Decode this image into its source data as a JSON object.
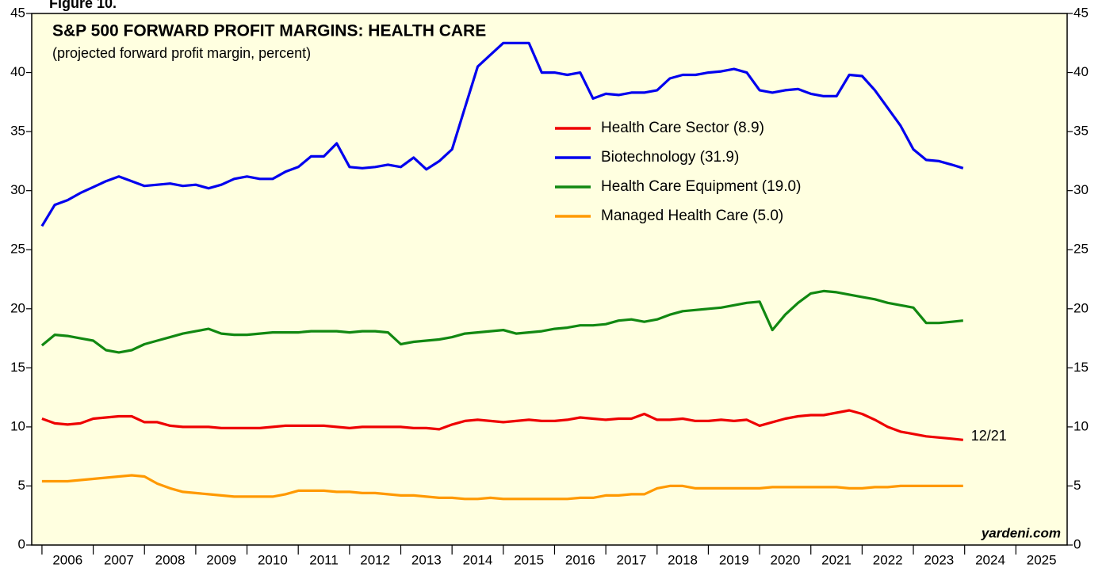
{
  "chart_data": {
    "type": "line",
    "figure_label": "Figure 10.",
    "title": "S&P 500 FORWARD PROFIT MARGINS: HEALTH CARE",
    "subtitle": "(projected forward profit margin, percent)",
    "source": "yardeni.com",
    "end_label": "12/21",
    "x": [
      2006,
      2006.25,
      2006.5,
      2006.75,
      2007,
      2007.25,
      2007.5,
      2007.75,
      2008,
      2008.25,
      2008.5,
      2008.75,
      2009,
      2009.25,
      2009.5,
      2009.75,
      2010,
      2010.25,
      2010.5,
      2010.75,
      2011,
      2011.25,
      2011.5,
      2011.75,
      2012,
      2012.25,
      2012.5,
      2012.75,
      2013,
      2013.25,
      2013.5,
      2013.75,
      2014,
      2014.25,
      2014.5,
      2014.75,
      2015,
      2015.25,
      2015.5,
      2015.75,
      2016,
      2016.25,
      2016.5,
      2016.75,
      2017,
      2017.25,
      2017.5,
      2017.75,
      2018,
      2018.25,
      2018.5,
      2018.75,
      2019,
      2019.25,
      2019.5,
      2019.75,
      2020,
      2020.25,
      2020.5,
      2020.75,
      2021,
      2021.25,
      2021.5,
      2021.75,
      2022,
      2022.25,
      2022.5,
      2022.75,
      2023,
      2023.25,
      2023.5,
      2023.75,
      2023.97
    ],
    "series": [
      {
        "name": "Health Care Sector (8.9)",
        "color": "#ee0000",
        "values": [
          10.7,
          10.3,
          10.2,
          10.3,
          10.7,
          10.8,
          10.9,
          10.9,
          10.4,
          10.4,
          10.1,
          10.0,
          10.0,
          10.0,
          9.9,
          9.9,
          9.9,
          9.9,
          10.0,
          10.1,
          10.1,
          10.1,
          10.1,
          10.0,
          9.9,
          10.0,
          10.0,
          10.0,
          10.0,
          9.9,
          9.9,
          9.8,
          10.2,
          10.5,
          10.6,
          10.5,
          10.4,
          10.5,
          10.6,
          10.5,
          10.5,
          10.6,
          10.8,
          10.7,
          10.6,
          10.7,
          10.7,
          11.1,
          10.6,
          10.6,
          10.7,
          10.5,
          10.5,
          10.6,
          10.5,
          10.6,
          10.1,
          10.4,
          10.7,
          10.9,
          11.0,
          11.0,
          11.2,
          11.4,
          11.1,
          10.6,
          10.0,
          9.6,
          9.4,
          9.2,
          9.1,
          9.0,
          8.9
        ]
      },
      {
        "name": "Biotechnology (31.9)",
        "color": "#0000ee",
        "values": [
          27.0,
          28.8,
          29.2,
          29.8,
          30.3,
          30.8,
          31.2,
          30.8,
          30.4,
          30.5,
          30.6,
          30.4,
          30.5,
          30.2,
          30.5,
          31.0,
          31.2,
          31.0,
          31.0,
          31.6,
          32.0,
          32.9,
          32.9,
          34.0,
          32.0,
          31.9,
          32.0,
          32.2,
          32.0,
          32.8,
          31.8,
          32.5,
          33.5,
          37.0,
          40.5,
          41.5,
          42.5,
          42.5,
          42.5,
          40.0,
          40.0,
          39.8,
          40.0,
          37.8,
          38.2,
          38.1,
          38.3,
          38.3,
          38.5,
          39.5,
          39.8,
          39.8,
          40.0,
          40.1,
          40.3,
          40.0,
          38.5,
          38.3,
          38.5,
          38.6,
          38.2,
          38.0,
          38.0,
          39.8,
          39.7,
          38.5,
          37.0,
          35.5,
          33.5,
          32.6,
          32.5,
          32.2,
          31.9
        ]
      },
      {
        "name": "Health Care Equipment (19.0)",
        "color": "#118811",
        "values": [
          16.9,
          17.8,
          17.7,
          17.5,
          17.3,
          16.5,
          16.3,
          16.5,
          17.0,
          17.3,
          17.6,
          17.9,
          18.1,
          18.3,
          17.9,
          17.8,
          17.8,
          17.9,
          18.0,
          18.0,
          18.0,
          18.1,
          18.1,
          18.1,
          18.0,
          18.1,
          18.1,
          18.0,
          17.0,
          17.2,
          17.3,
          17.4,
          17.6,
          17.9,
          18.0,
          18.1,
          18.2,
          17.9,
          18.0,
          18.1,
          18.3,
          18.4,
          18.6,
          18.6,
          18.7,
          19.0,
          19.1,
          18.9,
          19.1,
          19.5,
          19.8,
          19.9,
          20.0,
          20.1,
          20.3,
          20.5,
          20.6,
          18.2,
          19.5,
          20.5,
          21.3,
          21.5,
          21.4,
          21.2,
          21.0,
          20.8,
          20.5,
          20.3,
          20.1,
          18.8,
          18.8,
          18.9,
          19.0
        ]
      },
      {
        "name": "Managed Health Care (5.0)",
        "color": "#ff9900",
        "values": [
          5.4,
          5.4,
          5.4,
          5.5,
          5.6,
          5.7,
          5.8,
          5.9,
          5.8,
          5.2,
          4.8,
          4.5,
          4.4,
          4.3,
          4.2,
          4.1,
          4.1,
          4.1,
          4.1,
          4.3,
          4.6,
          4.6,
          4.6,
          4.5,
          4.5,
          4.4,
          4.4,
          4.3,
          4.2,
          4.2,
          4.1,
          4.0,
          4.0,
          3.9,
          3.9,
          4.0,
          3.9,
          3.9,
          3.9,
          3.9,
          3.9,
          3.9,
          4.0,
          4.0,
          4.2,
          4.2,
          4.3,
          4.3,
          4.8,
          5.0,
          5.0,
          4.8,
          4.8,
          4.8,
          4.8,
          4.8,
          4.8,
          4.9,
          4.9,
          4.9,
          4.9,
          4.9,
          4.9,
          4.8,
          4.8,
          4.9,
          4.9,
          5.0,
          5.0,
          5.0,
          5.0,
          5.0,
          5.0
        ]
      }
    ],
    "xlim": [
      2005.8,
      2026
    ],
    "xticks": [
      2006,
      2007,
      2008,
      2009,
      2010,
      2011,
      2012,
      2013,
      2014,
      2015,
      2016,
      2017,
      2018,
      2019,
      2020,
      2021,
      2022,
      2023,
      2024,
      2025
    ],
    "ylim": [
      0,
      45
    ],
    "yticks": [
      0,
      5,
      10,
      15,
      20,
      25,
      30,
      35,
      40,
      45
    ],
    "plot_background": "#ffffe0"
  }
}
